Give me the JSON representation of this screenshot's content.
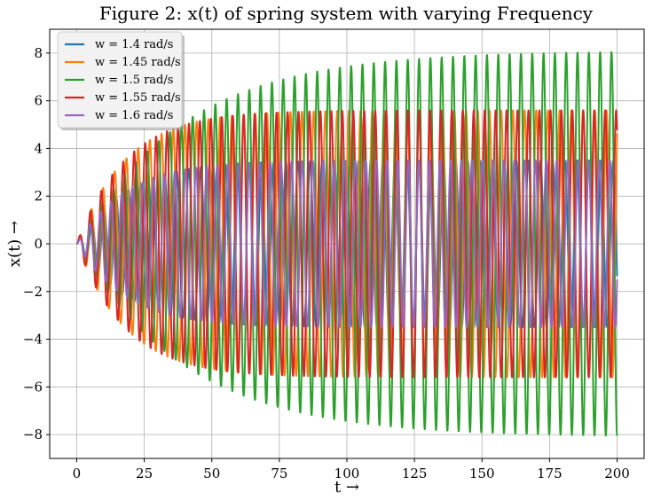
{
  "chart_data": {
    "type": "line",
    "title": "Figure 2: x(t) of spring system with varying Frequency",
    "xlabel": "t →",
    "ylabel": "x(t) →",
    "xlim": [
      -10,
      210
    ],
    "ylim": [
      -9,
      9
    ],
    "xticks": [
      0,
      25,
      50,
      75,
      100,
      125,
      150,
      175,
      200
    ],
    "yticks": [
      -8,
      -6,
      -4,
      -2,
      0,
      2,
      4,
      6,
      8
    ],
    "xtick_labels": [
      "0",
      "25",
      "50",
      "75",
      "100",
      "125",
      "150",
      "175",
      "200"
    ],
    "ytick_labels": [
      "−8",
      "−6",
      "−4",
      "−2",
      "0",
      "2",
      "4",
      "6",
      "8"
    ],
    "grid": true,
    "legend": "upper-left",
    "t_range": [
      0,
      200
    ],
    "series": [
      {
        "name": "w = 1.4 rad/s",
        "omega": 1.4,
        "steady_amplitude": 3.5,
        "color": "#1f77b4"
      },
      {
        "name": "w = 1.45 rad/s",
        "omega": 1.45,
        "steady_amplitude": 5.6,
        "color": "#ff7f0e"
      },
      {
        "name": "w = 1.5 rad/s",
        "omega": 1.5,
        "steady_amplitude": 8.1,
        "color": "#2ca02c"
      },
      {
        "name": "w = 1.55 rad/s",
        "omega": 1.55,
        "steady_amplitude": 5.6,
        "color": "#d62728"
      },
      {
        "name": "w = 1.6 rad/s",
        "omega": 1.6,
        "steady_amplitude": 3.5,
        "color": "#9467bd"
      }
    ]
  }
}
